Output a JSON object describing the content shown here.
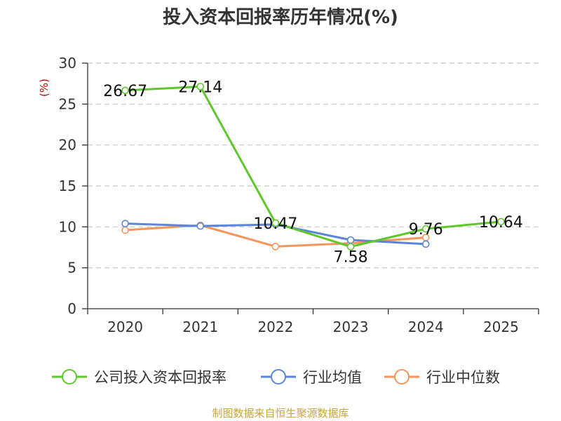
{
  "chart_data": {
    "type": "line",
    "title": "投入资本回报率历年情况(%)",
    "ylabel": "(%)",
    "categories": [
      "2020",
      "2021",
      "2022",
      "2023",
      "2024",
      "2025"
    ],
    "ylim": [
      0,
      30
    ],
    "yticks": [
      0,
      5,
      10,
      15,
      20,
      25,
      30
    ],
    "grid": true,
    "legend_position": "bottom",
    "series": [
      {
        "name": "公司投入资本回报率",
        "color": "#5ec72c",
        "values": [
          26.67,
          27.14,
          10.47,
          7.58,
          9.76,
          10.64
        ],
        "labels": [
          "26.67",
          "27.14",
          "10.47",
          "7.58",
          "9.76",
          "10.64"
        ]
      },
      {
        "name": "行业均值",
        "color": "#5b84db",
        "values": [
          10.4,
          10.1,
          10.3,
          8.4,
          7.9,
          null
        ]
      },
      {
        "name": "行业中位数",
        "color": "#f5955c",
        "values": [
          9.6,
          10.2,
          7.6,
          8.0,
          8.7,
          null
        ]
      }
    ]
  },
  "source": "制图数据来自恒生聚源数据库"
}
